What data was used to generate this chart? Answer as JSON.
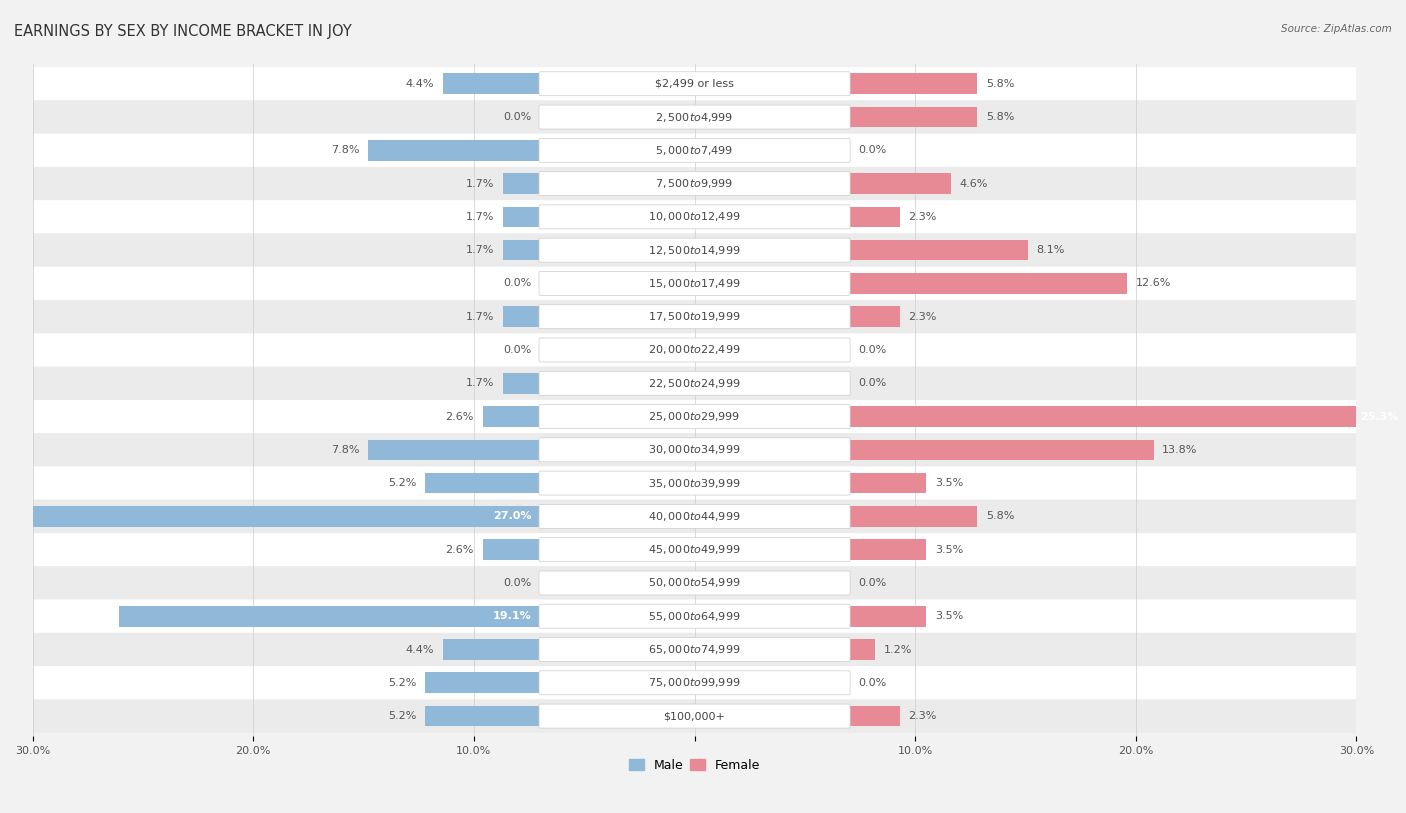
{
  "title": "EARNINGS BY SEX BY INCOME BRACKET IN JOY",
  "source": "Source: ZipAtlas.com",
  "categories": [
    "$2,499 or less",
    "$2,500 to $4,999",
    "$5,000 to $7,499",
    "$7,500 to $9,999",
    "$10,000 to $12,499",
    "$12,500 to $14,999",
    "$15,000 to $17,499",
    "$17,500 to $19,999",
    "$20,000 to $22,499",
    "$22,500 to $24,999",
    "$25,000 to $29,999",
    "$30,000 to $34,999",
    "$35,000 to $39,999",
    "$40,000 to $44,999",
    "$45,000 to $49,999",
    "$50,000 to $54,999",
    "$55,000 to $64,999",
    "$65,000 to $74,999",
    "$75,000 to $99,999",
    "$100,000+"
  ],
  "male_values": [
    4.4,
    0.0,
    7.8,
    1.7,
    1.7,
    1.7,
    0.0,
    1.7,
    0.0,
    1.7,
    2.6,
    7.8,
    5.2,
    27.0,
    2.6,
    0.0,
    19.1,
    4.4,
    5.2,
    5.2
  ],
  "female_values": [
    5.8,
    5.8,
    0.0,
    4.6,
    2.3,
    8.1,
    12.6,
    2.3,
    0.0,
    0.0,
    25.3,
    13.8,
    3.5,
    5.8,
    3.5,
    0.0,
    3.5,
    1.2,
    0.0,
    2.3
  ],
  "male_color": "#90b8d8",
  "female_color": "#e88a96",
  "axis_max": 30.0,
  "background_color": "#f2f2f2",
  "row_color_even": "#ffffff",
  "row_color_odd": "#ebebeb",
  "title_fontsize": 10.5,
  "label_fontsize": 8,
  "category_fontsize": 8,
  "legend_fontsize": 9,
  "source_fontsize": 7.5
}
